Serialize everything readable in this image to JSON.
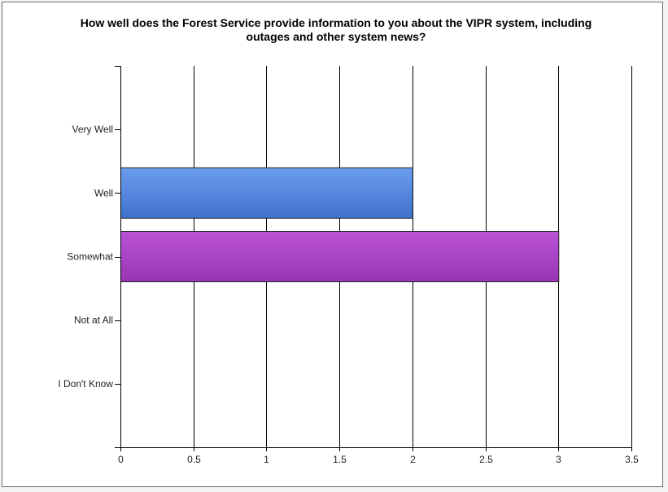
{
  "chart_data": {
    "type": "bar",
    "orientation": "horizontal",
    "title_lines": [
      "How well does the Forest Service provide information to you about the VIPR system, including",
      "outages and other system news?"
    ],
    "categories": [
      "Very Well",
      "Well",
      "Somewhat",
      "Not at All",
      "I Don't Know"
    ],
    "values": [
      0,
      2,
      3,
      0,
      0
    ],
    "xlabel": "",
    "ylabel": "",
    "xlim": [
      0,
      3.5
    ],
    "x_ticks": [
      "0",
      "0.5",
      "1",
      "1.5",
      "2",
      "2.5",
      "3",
      "3.5"
    ],
    "grid": "vertical",
    "legend": "none",
    "bar_colors": [
      "#5b8be0",
      "#5b8be0",
      "#a745c4",
      "#5b8be0",
      "#5b8be0"
    ]
  }
}
